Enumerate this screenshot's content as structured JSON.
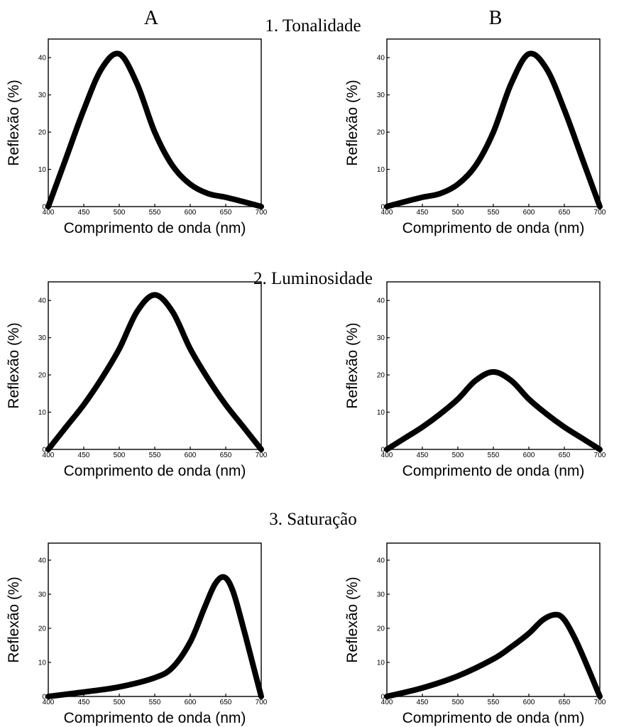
{
  "column_headers": [
    "A",
    "B"
  ],
  "section_titles": [
    "1. Tonalidade",
    "2. Luminosidade",
    "3. Saturação"
  ],
  "chart_data": [
    {
      "type": "line",
      "section": "1. Tonalidade",
      "column": "A",
      "xlabel": "Comprimento de onda (nm)",
      "ylabel": "Reflexão (%)",
      "xlim": [
        400,
        700
      ],
      "ylim": [
        0,
        45
      ],
      "xticks": [
        400,
        450,
        500,
        550,
        600,
        650,
        700
      ],
      "yticks": [
        0,
        10,
        20,
        30,
        40
      ],
      "grid": false,
      "series": [
        {
          "x": [
            400,
            425,
            450,
            475,
            500,
            525,
            550,
            575,
            600,
            625,
            650,
            675,
            700
          ],
          "y": [
            0,
            13,
            26,
            37,
            41,
            33,
            20,
            11,
            6,
            3.5,
            2.5,
            1.3,
            0
          ]
        }
      ]
    },
    {
      "type": "line",
      "section": "1. Tonalidade",
      "column": "B",
      "xlabel": "Comprimento de onda (nm)",
      "ylabel": "Reflexão (%)",
      "xlim": [
        400,
        700
      ],
      "ylim": [
        0,
        45
      ],
      "xticks": [
        400,
        450,
        500,
        550,
        600,
        650,
        700
      ],
      "yticks": [
        0,
        10,
        20,
        30,
        40
      ],
      "grid": false,
      "series": [
        {
          "x": [
            400,
            425,
            450,
            475,
            500,
            525,
            550,
            575,
            600,
            625,
            650,
            675,
            700
          ],
          "y": [
            0,
            1.3,
            2.5,
            3.5,
            6,
            11,
            20,
            33,
            41,
            37,
            26,
            13,
            0
          ]
        }
      ]
    },
    {
      "type": "line",
      "section": "2. Luminosidade",
      "column": "A",
      "xlabel": "Comprimento de onda (nm)",
      "ylabel": "Reflexão (%)",
      "xlim": [
        400,
        700
      ],
      "ylim": [
        0,
        45
      ],
      "xticks": [
        400,
        450,
        500,
        550,
        600,
        650,
        700
      ],
      "yticks": [
        0,
        10,
        20,
        30,
        40
      ],
      "grid": false,
      "series": [
        {
          "x": [
            400,
            425,
            450,
            475,
            500,
            525,
            550,
            575,
            600,
            625,
            650,
            675,
            700
          ],
          "y": [
            0,
            6,
            12,
            19,
            27,
            37,
            41.5,
            37,
            27,
            19,
            12,
            6,
            0
          ]
        }
      ]
    },
    {
      "type": "line",
      "section": "2. Luminosidade",
      "column": "B",
      "xlabel": "Comprimento de onda (nm)",
      "ylabel": "Reflexão (%)",
      "xlim": [
        400,
        700
      ],
      "ylim": [
        0,
        45
      ],
      "xticks": [
        400,
        450,
        500,
        550,
        600,
        650,
        700
      ],
      "yticks": [
        0,
        10,
        20,
        30,
        40
      ],
      "grid": false,
      "series": [
        {
          "x": [
            400,
            425,
            450,
            475,
            500,
            525,
            550,
            575,
            600,
            625,
            650,
            675,
            700
          ],
          "y": [
            0,
            3,
            6,
            9.5,
            13.5,
            18.5,
            20.8,
            18.5,
            13.5,
            9.5,
            6,
            3,
            0
          ]
        }
      ]
    },
    {
      "type": "line",
      "section": "3. Saturação",
      "column": "A",
      "xlabel": "Comprimento de onda (nm)",
      "ylabel": "Reflexão (%)",
      "xlim": [
        400,
        700
      ],
      "ylim": [
        0,
        45
      ],
      "xticks": [
        400,
        450,
        500,
        550,
        600,
        650,
        700
      ],
      "yticks": [
        0,
        10,
        20,
        30,
        40
      ],
      "grid": false,
      "series": [
        {
          "x": [
            400,
            450,
            500,
            550,
            575,
            600,
            620,
            635,
            648,
            660,
            675,
            690,
            700
          ],
          "y": [
            0,
            1.3,
            2.8,
            5.5,
            8.5,
            16,
            26,
            33,
            35,
            31,
            20,
            8,
            0
          ]
        }
      ]
    },
    {
      "type": "line",
      "section": "3. Saturação",
      "column": "B",
      "xlabel": "Comprimento de onda (nm)",
      "ylabel": "Reflexão (%)",
      "xlim": [
        400,
        700
      ],
      "ylim": [
        0,
        45
      ],
      "xticks": [
        400,
        450,
        500,
        550,
        600,
        650,
        700
      ],
      "yticks": [
        0,
        10,
        20,
        30,
        40
      ],
      "grid": false,
      "series": [
        {
          "x": [
            400,
            450,
            500,
            550,
            575,
            600,
            620,
            638,
            650,
            665,
            680,
            700
          ],
          "y": [
            0,
            2.5,
            6,
            11,
            14.5,
            18.5,
            22.5,
            24,
            22.5,
            17,
            10,
            0
          ]
        }
      ]
    }
  ]
}
